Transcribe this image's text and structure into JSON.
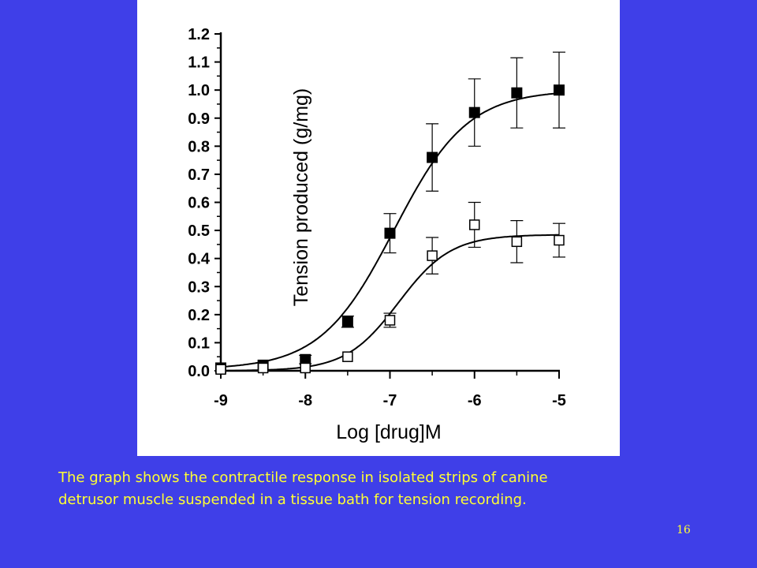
{
  "slide": {
    "caption_lines": [
      "The graph shows the contractile response in isolated strips of canine",
      "detrusor muscle suspended in a tissue bath for tension recording."
    ],
    "page_number": "16",
    "colors": {
      "background": "#3f3fe8",
      "caption_text": "#ffff33",
      "plot_background": "#ffffff"
    }
  },
  "chart_data": {
    "type": "scatter",
    "title": "",
    "xlabel": "Log [drug]M",
    "ylabel": "Tension produced (g/mg)",
    "xlim": [
      -9,
      -5
    ],
    "ylim": [
      0,
      1.2
    ],
    "x_ticks": [
      "-9",
      "-8",
      "-7",
      "-6",
      "-5"
    ],
    "y_ticks": [
      "0.0",
      "0.1",
      "0.2",
      "0.3",
      "0.4",
      "0.5",
      "0.6",
      "0.7",
      "0.8",
      "0.9",
      "1.0",
      "1.1",
      "1.2"
    ],
    "grid": false,
    "legend": "none",
    "fitted_curves": "sigmoidal",
    "series": [
      {
        "marker": "filled-square",
        "x": [
          -9,
          -8.5,
          -8,
          -7.5,
          -7,
          -6.5,
          -6,
          -5.5,
          -5
        ],
        "y": [
          0.01,
          0.02,
          0.04,
          0.175,
          0.49,
          0.76,
          0.92,
          0.99,
          1.0
        ],
        "error": [
          0.005,
          0.01,
          0.015,
          0.02,
          0.07,
          0.12,
          0.12,
          0.125,
          0.135
        ],
        "fit": {
          "bottom": 0.005,
          "top": 1.0,
          "logEC50": -6.95,
          "hill": 1.0
        }
      },
      {
        "marker": "open-square",
        "x": [
          -9,
          -8.5,
          -8,
          -7.5,
          -7,
          -6.5,
          -6,
          -5.5,
          -5
        ],
        "y": [
          0.005,
          0.01,
          0.01,
          0.05,
          0.18,
          0.41,
          0.52,
          0.46,
          0.465
        ],
        "error": [
          0.005,
          0.005,
          0.005,
          0.005,
          0.025,
          0.065,
          0.08,
          0.075,
          0.06
        ],
        "fit": {
          "bottom": 0.0,
          "top": 0.485,
          "logEC50": -6.9,
          "hill": 1.4
        }
      }
    ]
  }
}
